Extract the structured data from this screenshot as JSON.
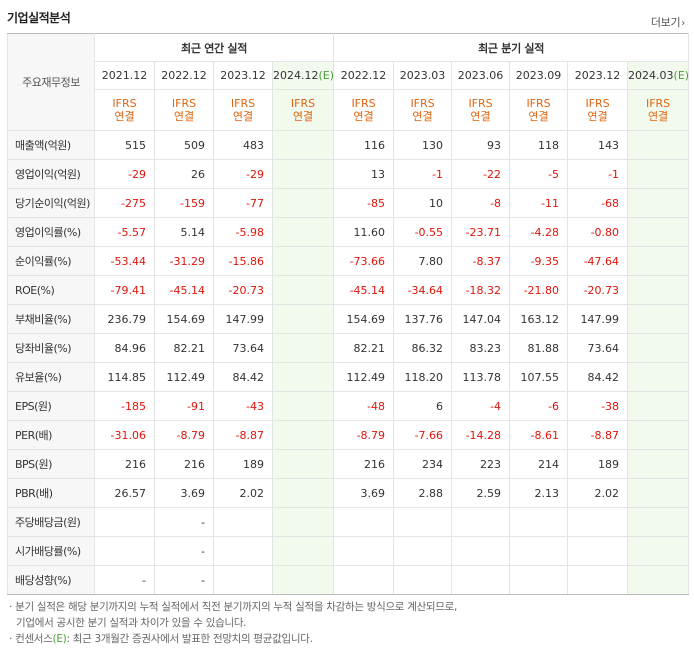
{
  "title": "기업실적분석",
  "more_label": "더보기",
  "corner_label": "주요재무정보",
  "group_annual": "최근 연간 실적",
  "group_quarter": "최근 분기 실적",
  "annual_periods": [
    "2021.12",
    "2022.12",
    "2023.12",
    "2024.12"
  ],
  "quarter_periods": [
    "2022.12",
    "2023.03",
    "2023.06",
    "2023.09",
    "2023.12",
    "2024.03"
  ],
  "estimate_mark": "(E)",
  "ifrs_label": "IFRS",
  "consolidated_label": "연결",
  "rows": [
    {
      "label": "매출액(억원)",
      "annual": [
        "515",
        "509",
        "483",
        ""
      ],
      "quarter": [
        "116",
        "130",
        "93",
        "118",
        "143",
        ""
      ]
    },
    {
      "label": "영업이익(억원)",
      "annual": [
        "-29",
        "26",
        "-29",
        ""
      ],
      "quarter": [
        "13",
        "-1",
        "-22",
        "-5",
        "-1",
        ""
      ]
    },
    {
      "label": "당기순이익(억원)",
      "annual": [
        "-275",
        "-159",
        "-77",
        ""
      ],
      "quarter": [
        "-85",
        "10",
        "-8",
        "-11",
        "-68",
        ""
      ]
    },
    {
      "label": "영업이익률(%)",
      "annual": [
        "-5.57",
        "5.14",
        "-5.98",
        ""
      ],
      "quarter": [
        "11.60",
        "-0.55",
        "-23.71",
        "-4.28",
        "-0.80",
        ""
      ]
    },
    {
      "label": "순이익률(%)",
      "annual": [
        "-53.44",
        "-31.29",
        "-15.86",
        ""
      ],
      "quarter": [
        "-73.66",
        "7.80",
        "-8.37",
        "-9.35",
        "-47.64",
        ""
      ]
    },
    {
      "label": "ROE(%)",
      "annual": [
        "-79.41",
        "-45.14",
        "-20.73",
        ""
      ],
      "quarter": [
        "-45.14",
        "-34.64",
        "-18.32",
        "-21.80",
        "-20.73",
        ""
      ]
    },
    {
      "label": "부채비율(%)",
      "annual": [
        "236.79",
        "154.69",
        "147.99",
        ""
      ],
      "quarter": [
        "154.69",
        "137.76",
        "147.04",
        "163.12",
        "147.99",
        ""
      ]
    },
    {
      "label": "당좌비율(%)",
      "annual": [
        "84.96",
        "82.21",
        "73.64",
        ""
      ],
      "quarter": [
        "82.21",
        "86.32",
        "83.23",
        "81.88",
        "73.64",
        ""
      ]
    },
    {
      "label": "유보율(%)",
      "annual": [
        "114.85",
        "112.49",
        "84.42",
        ""
      ],
      "quarter": [
        "112.49",
        "118.20",
        "113.78",
        "107.55",
        "84.42",
        ""
      ]
    },
    {
      "label": "EPS(원)",
      "annual": [
        "-185",
        "-91",
        "-43",
        ""
      ],
      "quarter": [
        "-48",
        "6",
        "-4",
        "-6",
        "-38",
        ""
      ]
    },
    {
      "label": "PER(배)",
      "annual": [
        "-31.06",
        "-8.79",
        "-8.87",
        ""
      ],
      "quarter": [
        "-8.79",
        "-7.66",
        "-14.28",
        "-8.61",
        "-8.87",
        ""
      ]
    },
    {
      "label": "BPS(원)",
      "annual": [
        "216",
        "216",
        "189",
        ""
      ],
      "quarter": [
        "216",
        "234",
        "223",
        "214",
        "189",
        ""
      ]
    },
    {
      "label": "PBR(배)",
      "annual": [
        "26.57",
        "3.69",
        "2.02",
        ""
      ],
      "quarter": [
        "3.69",
        "2.88",
        "2.59",
        "2.13",
        "2.02",
        ""
      ]
    },
    {
      "label": "주당배당금(원)",
      "annual": [
        "",
        "-",
        "",
        ""
      ],
      "quarter": [
        "",
        "",
        "",
        "",
        "",
        ""
      ]
    },
    {
      "label": "시가배당률(%)",
      "annual": [
        "",
        "-",
        "",
        ""
      ],
      "quarter": [
        "",
        "",
        "",
        "",
        "",
        ""
      ]
    },
    {
      "label": "배당성향(%)",
      "annual": [
        "-",
        "-",
        "",
        ""
      ],
      "quarter": [
        "",
        "",
        "",
        "",
        "",
        ""
      ]
    }
  ],
  "note1": "분기 실적은 해당 분기까지의 누적 실적에서 직전 분기까지의 누적 실적을 차감하는 방식으로 계산되므로,",
  "note1b": "기업에서 공시한 분기 실적과 차이가 있을 수 있습니다.",
  "note2_prefix": "컨센서스",
  "note2_suffix": ": 최근 3개월간 증권사에서 발표한 전망치의 평균값입니다.",
  "colors": {
    "negative": "#e1140a",
    "ifrs": "#e1640f",
    "estimate_bg": "#f2f9ed",
    "estimate_mark": "#4a9e3a"
  }
}
